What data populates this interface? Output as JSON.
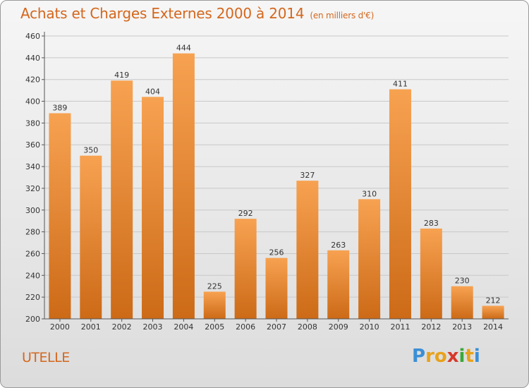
{
  "chart_data": {
    "type": "bar",
    "title": "Achats et Charges Externes 2000 à 2014",
    "subtitle": "(en milliers d'€)",
    "categories": [
      "2000",
      "2001",
      "2002",
      "2003",
      "2004",
      "2005",
      "2006",
      "2007",
      "2008",
      "2009",
      "2010",
      "2011",
      "2012",
      "2013",
      "2014"
    ],
    "values": [
      389,
      350,
      419,
      404,
      444,
      225,
      292,
      256,
      327,
      263,
      310,
      411,
      283,
      230,
      212
    ],
    "ylim": [
      200,
      460
    ],
    "yticks": [
      200,
      220,
      240,
      260,
      280,
      300,
      320,
      340,
      360,
      380,
      400,
      420,
      440,
      460
    ],
    "grid": true,
    "bar_color_top": "#f7a251",
    "bar_color_bottom": "#cc6a17"
  },
  "footer": {
    "commune": "UTELLE",
    "logo_letters": [
      "P",
      "r",
      "o",
      "x",
      "i",
      "t",
      "i"
    ],
    "logo_colors": [
      "#3a8fd6",
      "#e8a21b",
      "#e8a21b",
      "#d63a2a",
      "#3aa83a",
      "#e8a21b",
      "#3a8fd6"
    ]
  }
}
